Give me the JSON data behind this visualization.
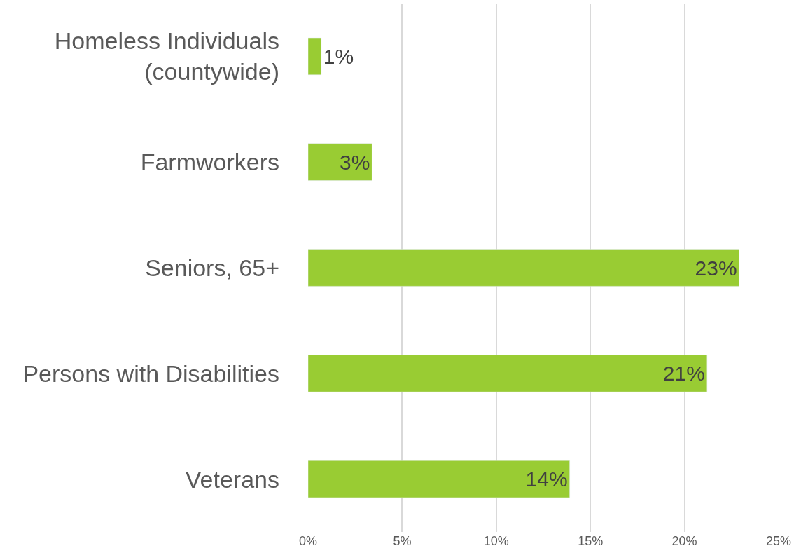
{
  "chart_data": {
    "type": "bar",
    "orientation": "horizontal",
    "categories": [
      "Homeless Individuals\n(countywide)",
      "Farmworkers",
      "Seniors, 65+",
      "Persons with Disabilities",
      "Veterans"
    ],
    "values": [
      0.7,
      3.4,
      22.9,
      21.2,
      13.9
    ],
    "value_labels": [
      "1%",
      "3%",
      "23%",
      "21%",
      "14%"
    ],
    "color": "#99cc33",
    "xlim": [
      0,
      25
    ],
    "xticks": [
      {
        "value": 0,
        "label": "0%"
      },
      {
        "value": 5,
        "label": "5%"
      },
      {
        "value": 10,
        "label": "10%"
      },
      {
        "value": 15,
        "label": "15%"
      },
      {
        "value": 20,
        "label": "20%"
      },
      {
        "value": 25,
        "label": "25%"
      }
    ],
    "grid": "x",
    "legend": false
  }
}
